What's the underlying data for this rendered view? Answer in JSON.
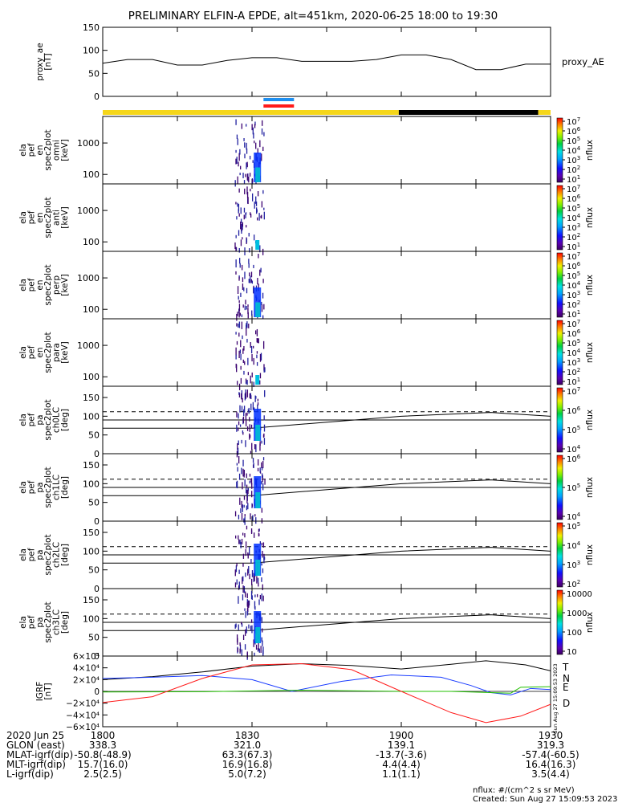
{
  "chart_data": {
    "type": "heatmap",
    "title": "PRELIMINARY ELFIN-A EPDE, alt=451km, 2020-06-25 18:00 to 19:30",
    "x_ticks": [
      "1800",
      "1830",
      "1900",
      "1930"
    ],
    "x_range_minutes": [
      0,
      90
    ],
    "time_values_minutes": [
      0,
      15,
      30,
      45,
      60,
      75,
      90
    ],
    "panels": [
      {
        "id": "proxy_ae",
        "ylabel": [
          "proxy_ae",
          "[nT]"
        ],
        "yticks": [
          "150",
          "100",
          "50",
          "0"
        ],
        "ylim": [
          0,
          150
        ],
        "legend": "proxy_AE",
        "series": [
          {
            "x": [
              0,
              5,
              10,
              15,
              20,
              25,
              30,
              35,
              40,
              45,
              50,
              55,
              60,
              65,
              70,
              75,
              80,
              85,
              90
            ],
            "y": [
              72,
              80,
              80,
              68,
              68,
              78,
              84,
              84,
              76,
              76,
              76,
              80,
              90,
              90,
              80,
              58,
              58,
              70,
              70
            ]
          }
        ]
      },
      {
        "id": "spec_omni",
        "ylabel": [
          "ela",
          "pef",
          "en",
          "spec2plot",
          "omni",
          "[keV]"
        ],
        "yticks": [
          "1000",
          "100"
        ],
        "log_y": true,
        "ylim": [
          50,
          7000
        ],
        "colorbar_label": "nflux",
        "colorbar_ticks": [
          "10",
          "10",
          "10",
          "10",
          "10",
          "10",
          "10"
        ],
        "colorbar_exp": [
          "7",
          "6",
          "5",
          "4",
          "3",
          "2",
          "1"
        ]
      },
      {
        "id": "spec_anti",
        "ylabel": [
          "ela",
          "pef",
          "en",
          "spec2plot",
          "anti",
          "[keV]"
        ],
        "yticks": [
          "1000",
          "100"
        ],
        "log_y": true,
        "ylim": [
          50,
          7000
        ],
        "colorbar_label": "nflux",
        "colorbar_ticks": [
          "10",
          "10",
          "10",
          "10",
          "10",
          "10",
          "10"
        ],
        "colorbar_exp": [
          "7",
          "6",
          "5",
          "4",
          "3",
          "2",
          "1"
        ]
      },
      {
        "id": "spec_perp",
        "ylabel": [
          "ela",
          "pef",
          "en",
          "spec2plot",
          "perp",
          "[keV]"
        ],
        "yticks": [
          "1000",
          "100"
        ],
        "log_y": true,
        "ylim": [
          50,
          7000
        ],
        "colorbar_label": "nflux",
        "colorbar_ticks": [
          "10",
          "10",
          "10",
          "10",
          "10",
          "10",
          "10"
        ],
        "colorbar_exp": [
          "7",
          "6",
          "5",
          "4",
          "3",
          "2",
          "1"
        ]
      },
      {
        "id": "spec_para",
        "ylabel": [
          "ela",
          "pef",
          "en",
          "spec2plot",
          "para",
          "[keV]"
        ],
        "yticks": [
          "1000",
          "100"
        ],
        "log_y": true,
        "ylim": [
          50,
          7000
        ],
        "colorbar_label": "nflux",
        "colorbar_ticks": [
          "10",
          "10",
          "10",
          "10",
          "10",
          "10",
          "10"
        ],
        "colorbar_exp": [
          "7",
          "6",
          "5",
          "4",
          "3",
          "2",
          "1"
        ]
      },
      {
        "id": "pa_ch0",
        "ylabel": [
          "ela",
          "pef",
          "pa",
          "spec2plot",
          "ch0LC",
          "[deg]"
        ],
        "yticks": [
          "150",
          "100",
          "50",
          "0"
        ],
        "ylim": [
          0,
          180
        ],
        "colorbar_label": "nflux",
        "colorbar_ticks": [
          "10",
          "10",
          "10",
          "10"
        ],
        "colorbar_exp": [
          "7",
          "6",
          "5",
          "4"
        ],
        "lc_solid_a": [
          {
            "x": 0,
            "y": 90
          },
          {
            "x": 90,
            "y": 90
          }
        ],
        "lc_dashed": [
          {
            "x": 0,
            "y": 112
          },
          {
            "x": 90,
            "y": 112
          }
        ],
        "lc_solid_b": [
          {
            "x": 0,
            "y": 68
          },
          {
            "x": 30,
            "y": 68
          },
          {
            "x": 60,
            "y": 100
          },
          {
            "x": 78,
            "y": 110
          },
          {
            "x": 90,
            "y": 100
          }
        ]
      },
      {
        "id": "pa_ch1",
        "ylabel": [
          "ela",
          "pef",
          "pa",
          "spec2plot",
          "ch1LC",
          "[deg]"
        ],
        "yticks": [
          "150",
          "100",
          "50",
          "0"
        ],
        "ylim": [
          0,
          180
        ],
        "colorbar_label": "nflux",
        "colorbar_ticks": [
          "10",
          "10",
          "10"
        ],
        "colorbar_exp": [
          "6",
          "5",
          "4"
        ],
        "lc_solid_a": [
          {
            "x": 0,
            "y": 90
          },
          {
            "x": 90,
            "y": 90
          }
        ],
        "lc_dashed": [
          {
            "x": 0,
            "y": 112
          },
          {
            "x": 90,
            "y": 112
          }
        ],
        "lc_solid_b": [
          {
            "x": 0,
            "y": 68
          },
          {
            "x": 30,
            "y": 68
          },
          {
            "x": 60,
            "y": 100
          },
          {
            "x": 78,
            "y": 110
          },
          {
            "x": 90,
            "y": 100
          }
        ]
      },
      {
        "id": "pa_ch2",
        "ylabel": [
          "ela",
          "pef",
          "pa",
          "spec2plot",
          "ch2LC",
          "[deg]"
        ],
        "yticks": [
          "150",
          "100",
          "50",
          "0"
        ],
        "ylim": [
          0,
          180
        ],
        "colorbar_label": "nflux",
        "colorbar_ticks": [
          "10",
          "10",
          "10",
          "10"
        ],
        "colorbar_exp": [
          "5",
          "4",
          "3",
          "2"
        ],
        "lc_solid_a": [
          {
            "x": 0,
            "y": 90
          },
          {
            "x": 90,
            "y": 90
          }
        ],
        "lc_dashed": [
          {
            "x": 0,
            "y": 112
          },
          {
            "x": 90,
            "y": 112
          }
        ],
        "lc_solid_b": [
          {
            "x": 0,
            "y": 68
          },
          {
            "x": 30,
            "y": 68
          },
          {
            "x": 60,
            "y": 100
          },
          {
            "x": 78,
            "y": 110
          },
          {
            "x": 90,
            "y": 100
          }
        ]
      },
      {
        "id": "pa_ch3",
        "ylabel": [
          "ela",
          "pef",
          "pa",
          "spec2plot",
          "ch3LC",
          "[deg]"
        ],
        "yticks": [
          "150",
          "100",
          "50",
          "0"
        ],
        "ylim": [
          0,
          180
        ],
        "colorbar_label": "nflux",
        "colorbar_ticks": [
          "10000",
          "1000",
          "100",
          "10"
        ],
        "lc_solid_a": [
          {
            "x": 0,
            "y": 90
          },
          {
            "x": 90,
            "y": 90
          }
        ],
        "lc_dashed": [
          {
            "x": 0,
            "y": 112
          },
          {
            "x": 90,
            "y": 112
          }
        ],
        "lc_solid_b": [
          {
            "x": 0,
            "y": 68
          },
          {
            "x": 30,
            "y": 68
          },
          {
            "x": 60,
            "y": 100
          },
          {
            "x": 78,
            "y": 110
          },
          {
            "x": 90,
            "y": 100
          }
        ]
      },
      {
        "id": "igrf",
        "ylabel": [
          "IGRF",
          "[nT]"
        ],
        "yticks": [
          "6×10⁴",
          "4×10⁴",
          "2×10⁴",
          "0",
          "−2×10⁴",
          "−4×10⁴",
          "−6×10⁴"
        ],
        "ylim": [
          -60000,
          60000
        ],
        "legend": [
          "T",
          "N",
          "E",
          "D"
        ],
        "series": [
          {
            "name": "T",
            "color": "#000000",
            "x": [
              0,
              10,
              20,
              30,
              40,
              50,
              60,
              70,
              77,
              85,
              90
            ],
            "y": [
              20000,
              25000,
              33000,
              43000,
              47000,
              44000,
              38000,
              46000,
              52000,
              45000,
              35000
            ]
          },
          {
            "name": "N",
            "color": "#1a3cff",
            "x": [
              0,
              10,
              20,
              30,
              38,
              48,
              58,
              68,
              74,
              78,
              82,
              86,
              90
            ],
            "y": [
              22000,
              24000,
              27000,
              20000,
              0,
              17000,
              28000,
              24000,
              10000,
              -2000,
              -6000,
              5000,
              3000
            ]
          },
          {
            "name": "E",
            "color": "#22c000",
            "x": [
              0,
              20,
              40,
              60,
              70,
              82,
              84,
              90
            ],
            "y": [
              -1000,
              -500,
              2000,
              0,
              0,
              -3000,
              7000,
              8000
            ]
          },
          {
            "name": "D",
            "color": "#ff1a1a",
            "x": [
              0,
              10,
              20,
              30,
              40,
              50,
              60,
              70,
              77,
              84,
              90
            ],
            "y": [
              -19000,
              -9000,
              22000,
              45000,
              47000,
              37000,
              0,
              -36000,
              -53000,
              -42000,
              -22000
            ]
          }
        ]
      }
    ],
    "orbit_bar": {
      "segments": [
        {
          "from": 0,
          "to": 59.5,
          "color": "#f5d61a"
        },
        {
          "from": 59.5,
          "to": 87.5,
          "color": "#000000"
        },
        {
          "from": 87.5,
          "to": 90,
          "color": "#f5d61a"
        }
      ],
      "markers": [
        {
          "from": 26.5,
          "to": 32.5,
          "color": "#1e8ff0",
          "row": 0
        },
        {
          "from": 26.5,
          "to": 32.5,
          "color": "#ff1a1a",
          "row": 1
        }
      ]
    },
    "footer": {
      "rows": [
        {
          "label": "2020 Jun 25",
          "values": [
            "1800",
            "1830",
            "1900",
            "1930"
          ]
        },
        {
          "label": "GLON (east)",
          "values": [
            "338.3",
            "321.0",
            "139.1",
            "319.3"
          ]
        },
        {
          "label": "MLAT-igrf(dip)",
          "values": [
            "-50.8(-48.9)",
            "63.3(67.3)",
            "-13.7(-3.6)",
            "-57.4(-60.5)"
          ]
        },
        {
          "label": "MLT-igrf(dip)",
          "values": [
            "15.7(16.0)",
            "16.9(16.8)",
            "4.4(4.4)",
            "16.4(16.3)"
          ]
        },
        {
          "label": "L-igrf(dip)",
          "values": [
            "2.5(2.5)",
            "5.0(7.2)",
            "1.1(1.1)",
            "3.5(4.4)"
          ]
        }
      ],
      "units_note": "nflux: #/(cm^2 s sr MeV)",
      "created": "Created: Sun Aug 27 15:09:53 2023",
      "side_stamp": "Sun Aug 27 15:09:53 2023"
    }
  }
}
